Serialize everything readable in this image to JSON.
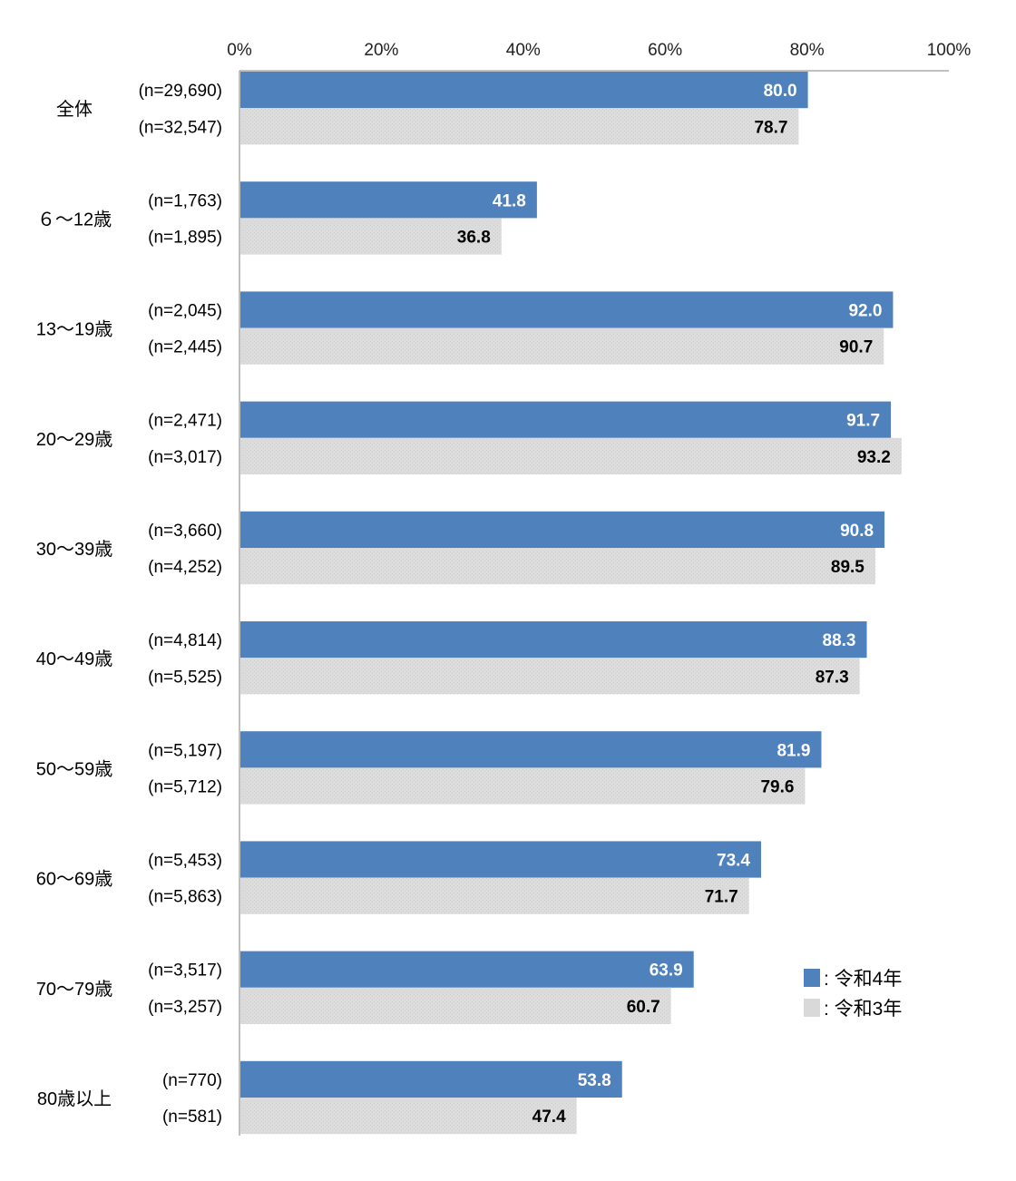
{
  "chart_data": {
    "type": "bar",
    "orientation": "horizontal",
    "x_ticks": [
      "0%",
      "20%",
      "40%",
      "60%",
      "80%",
      "100%"
    ],
    "xlim": [
      0,
      100
    ],
    "grid": false,
    "legend_position": "right",
    "categories": [
      "全体",
      "６～12歳",
      "13～19歳",
      "20～29歳",
      "30～39歳",
      "40～49歳",
      "50～59歳",
      "60～69歳",
      "70～79歳",
      "80歳以上"
    ],
    "series": [
      {
        "name": "令和4年",
        "legend_label": ": 令和4年",
        "color": "#4f81bd",
        "label_color": "#ffffff",
        "values": [
          80.0,
          41.8,
          92.0,
          91.7,
          90.8,
          88.3,
          81.9,
          73.4,
          63.9,
          53.8
        ],
        "value_labels": [
          "80.0",
          "41.8",
          "92.0",
          "91.7",
          "90.8",
          "88.3",
          "81.9",
          "73.4",
          "63.9",
          "53.8"
        ],
        "n_labels": [
          "(n=29,690)",
          "(n=1,763)",
          "(n=2,045)",
          "(n=2,471)",
          "(n=3,660)",
          "(n=4,814)",
          "(n=5,197)",
          "(n=5,453)",
          "(n=3,517)",
          "(n=770)"
        ]
      },
      {
        "name": "令和3年",
        "legend_label": ": 令和3年",
        "color": "#d9d9d9",
        "label_color": "#000000",
        "values": [
          78.7,
          36.8,
          90.7,
          93.2,
          89.5,
          87.3,
          79.6,
          71.7,
          60.7,
          47.4
        ],
        "value_labels": [
          "78.7",
          "36.8",
          "90.7",
          "93.2",
          "89.5",
          "87.3",
          "79.6",
          "71.7",
          "60.7",
          "47.4"
        ],
        "n_labels": [
          "(n=32,547)",
          "(n=1,895)",
          "(n=2,445)",
          "(n=3,017)",
          "(n=4,252)",
          "(n=5,525)",
          "(n=5,712)",
          "(n=5,863)",
          "(n=3,257)",
          "(n=581)"
        ]
      }
    ]
  }
}
